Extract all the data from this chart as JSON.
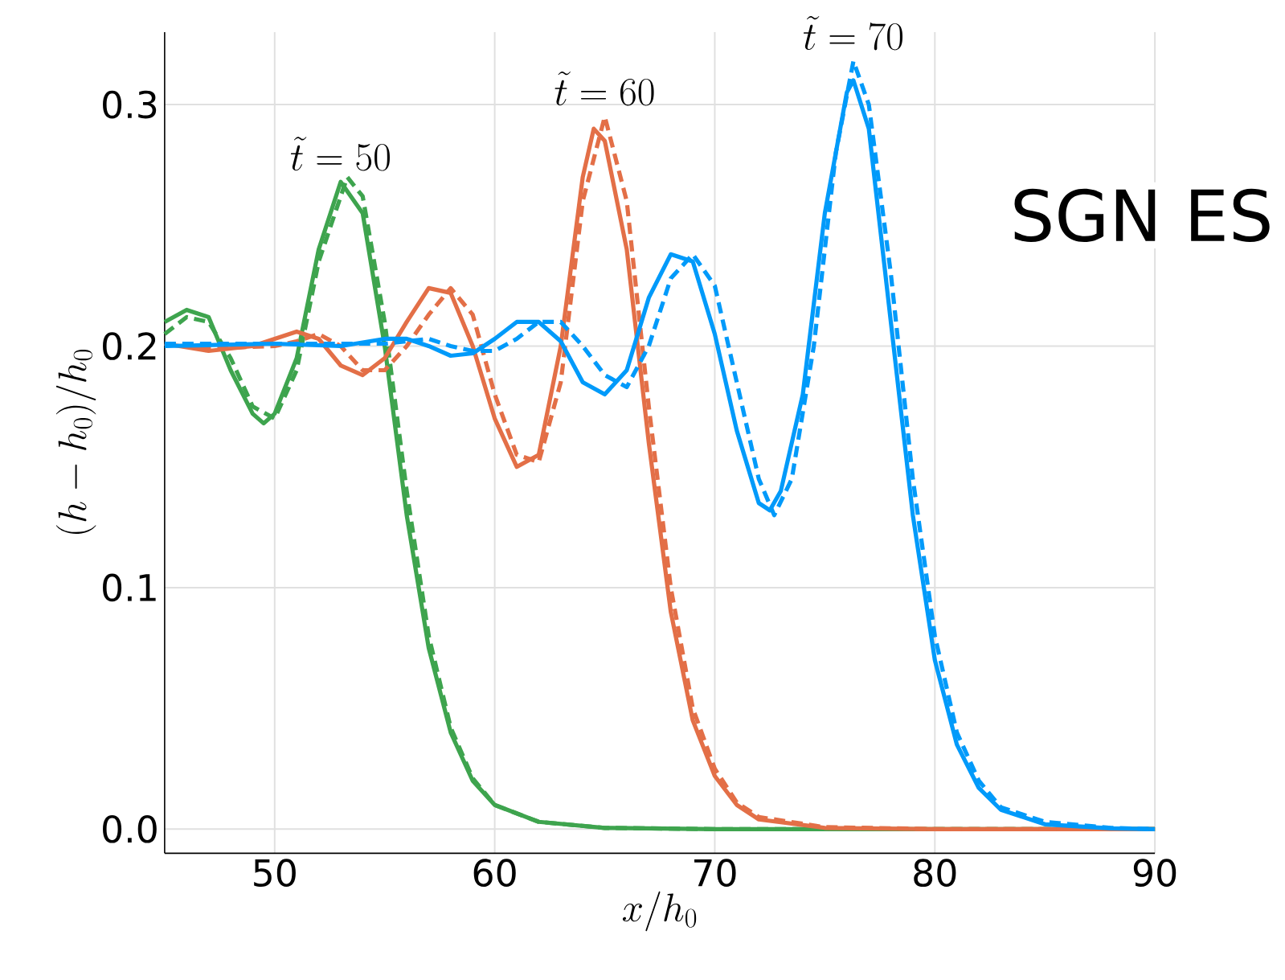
{
  "chart_data": {
    "type": "line",
    "xlabel": "x/h_0",
    "ylabel": "(h-h_0)/h_0",
    "xlim": [
      45,
      90
    ],
    "ylim": [
      -0.01,
      0.33
    ],
    "xticks": [
      50,
      60,
      70,
      80,
      90
    ],
    "yticks": [
      {
        "value": 0,
        "label": "0.0"
      },
      {
        "value": 0.1,
        "label": "0.1"
      },
      {
        "value": 0.2,
        "label": "0.2"
      },
      {
        "value": 0.3,
        "label": "0.3"
      }
    ],
    "grid": true,
    "series": [
      {
        "color": "#3ea44e",
        "line_style": "solid",
        "x": [
          45,
          46,
          47,
          48,
          49,
          49.5,
          50,
          51,
          52,
          53,
          54,
          55,
          56,
          57,
          58,
          59,
          60,
          62,
          65,
          70,
          90
        ],
        "values": [
          0.21,
          0.215,
          0.212,
          0.19,
          0.172,
          0.168,
          0.172,
          0.195,
          0.24,
          0.268,
          0.255,
          0.2,
          0.13,
          0.075,
          0.04,
          0.02,
          0.01,
          0.003,
          0.0005,
          0,
          0
        ]
      },
      {
        "color": "#3ea44e",
        "line_style": "dashed",
        "x": [
          45,
          46,
          47,
          48,
          49,
          50,
          51,
          52,
          53.3,
          54,
          55,
          56,
          57,
          58,
          59,
          60,
          62,
          65,
          70,
          90
        ],
        "values": [
          0.205,
          0.212,
          0.21,
          0.195,
          0.175,
          0.17,
          0.19,
          0.235,
          0.27,
          0.262,
          0.21,
          0.14,
          0.08,
          0.042,
          0.021,
          0.01,
          0.003,
          0.0005,
          0,
          0
        ]
      },
      {
        "color": "#e36f47",
        "line_style": "solid",
        "x": [
          45,
          47,
          49,
          50,
          51,
          52,
          53,
          54,
          55,
          56,
          57,
          58,
          59,
          60,
          61,
          62,
          63,
          64,
          64.5,
          65,
          66,
          67,
          68,
          69,
          70,
          71,
          72,
          75,
          80,
          90
        ],
        "values": [
          0.201,
          0.198,
          0.2,
          0.203,
          0.206,
          0.203,
          0.192,
          0.188,
          0.195,
          0.21,
          0.224,
          0.222,
          0.2,
          0.17,
          0.15,
          0.155,
          0.2,
          0.27,
          0.29,
          0.285,
          0.24,
          0.16,
          0.09,
          0.045,
          0.022,
          0.01,
          0.004,
          0.0005,
          0,
          0
        ]
      },
      {
        "color": "#e36f47",
        "line_style": "dashed",
        "x": [
          45,
          47,
          50,
          51,
          52,
          53,
          54,
          55,
          56,
          57,
          58,
          59,
          60,
          61,
          62,
          63,
          64,
          65,
          66,
          67,
          68,
          69,
          70,
          71,
          72,
          75,
          80,
          90
        ],
        "values": [
          0.201,
          0.199,
          0.2,
          0.202,
          0.205,
          0.2,
          0.19,
          0.19,
          0.2,
          0.213,
          0.224,
          0.213,
          0.18,
          0.155,
          0.152,
          0.185,
          0.26,
          0.295,
          0.26,
          0.175,
          0.1,
          0.05,
          0.025,
          0.011,
          0.005,
          0.0008,
          0,
          0
        ]
      },
      {
        "color": "#009afa",
        "line_style": "solid",
        "x": [
          45,
          50,
          53,
          55,
          56,
          57,
          58,
          59,
          60,
          61,
          62,
          63,
          64,
          65,
          66,
          67,
          68,
          69,
          70,
          71,
          72,
          72.5,
          73,
          74,
          75,
          76,
          76.3,
          77,
          78,
          79,
          80,
          81,
          82,
          83,
          85,
          88,
          90
        ],
        "values": [
          0.2,
          0.201,
          0.2,
          0.203,
          0.203,
          0.2,
          0.196,
          0.197,
          0.203,
          0.21,
          0.21,
          0.202,
          0.185,
          0.18,
          0.19,
          0.22,
          0.238,
          0.235,
          0.205,
          0.165,
          0.135,
          0.132,
          0.14,
          0.18,
          0.255,
          0.305,
          0.31,
          0.29,
          0.21,
          0.13,
          0.07,
          0.035,
          0.017,
          0.008,
          0.002,
          0.0003,
          0
        ]
      },
      {
        "color": "#009afa",
        "line_style": "dashed",
        "x": [
          45,
          55,
          57,
          58,
          59,
          60,
          61,
          62,
          63,
          64,
          65,
          66,
          67,
          68,
          69,
          70,
          71,
          72,
          72.7,
          73.5,
          74.5,
          75.5,
          76.3,
          77,
          78,
          79,
          80,
          81,
          82,
          83,
          85,
          88,
          90
        ],
        "values": [
          0.201,
          0.201,
          0.203,
          0.2,
          0.198,
          0.198,
          0.203,
          0.21,
          0.21,
          0.2,
          0.188,
          0.183,
          0.2,
          0.228,
          0.238,
          0.225,
          0.185,
          0.145,
          0.13,
          0.145,
          0.2,
          0.28,
          0.318,
          0.3,
          0.23,
          0.145,
          0.08,
          0.04,
          0.02,
          0.009,
          0.003,
          0.0005,
          0
        ]
      }
    ],
    "annotations": [
      {
        "text": "\\tilde{t} = 50",
        "x": 53,
        "y": 0.268
      },
      {
        "text": "\\tilde{t} = 60",
        "x": 65,
        "y": 0.295
      },
      {
        "text": "\\tilde{t} = 70",
        "x": 76.3,
        "y": 0.318
      },
      "SGN ES"
    ]
  }
}
